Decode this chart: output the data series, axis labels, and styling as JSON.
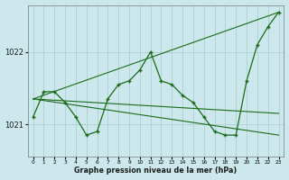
{
  "background_color": "#cce8ec",
  "grid_color": "#aad0d4",
  "line_color": "#1a6b1a",
  "title": "Graphe pression niveau de la mer (hPa)",
  "ylim": [
    1020.55,
    1022.65
  ],
  "xlim": [
    -0.5,
    23.5
  ],
  "yticks": [
    1021,
    1022
  ],
  "xtick_labels": [
    "0",
    "1",
    "2",
    "3",
    "4",
    "5",
    "6",
    "7",
    "8",
    "9",
    "10",
    "11",
    "12",
    "13",
    "14",
    "15",
    "16",
    "17",
    "18",
    "19",
    "20",
    "21",
    "22",
    "23"
  ],
  "series_main": {
    "x": [
      0,
      1,
      2,
      3,
      4,
      5,
      6,
      7,
      8,
      9,
      10,
      11,
      12,
      13,
      14,
      15,
      16,
      17,
      18,
      19,
      20,
      21,
      22,
      23
    ],
    "y": [
      1021.1,
      1021.45,
      1021.45,
      1021.3,
      1021.1,
      1020.85,
      1020.9,
      1021.35,
      1021.55,
      1021.6,
      1021.75,
      1022.0,
      1021.6,
      1021.55,
      1021.4,
      1021.3,
      1021.1,
      1020.9,
      1020.85,
      1020.85,
      1021.6,
      1022.1,
      1022.35,
      1022.55
    ]
  },
  "trend1": {
    "x": [
      0,
      23
    ],
    "y": [
      1021.35,
      1022.55
    ]
  },
  "trend2": {
    "x": [
      0,
      23
    ],
    "y": [
      1021.35,
      1021.15
    ]
  },
  "trend3": {
    "x": [
      0,
      23
    ],
    "y": [
      1021.35,
      1020.85
    ]
  }
}
